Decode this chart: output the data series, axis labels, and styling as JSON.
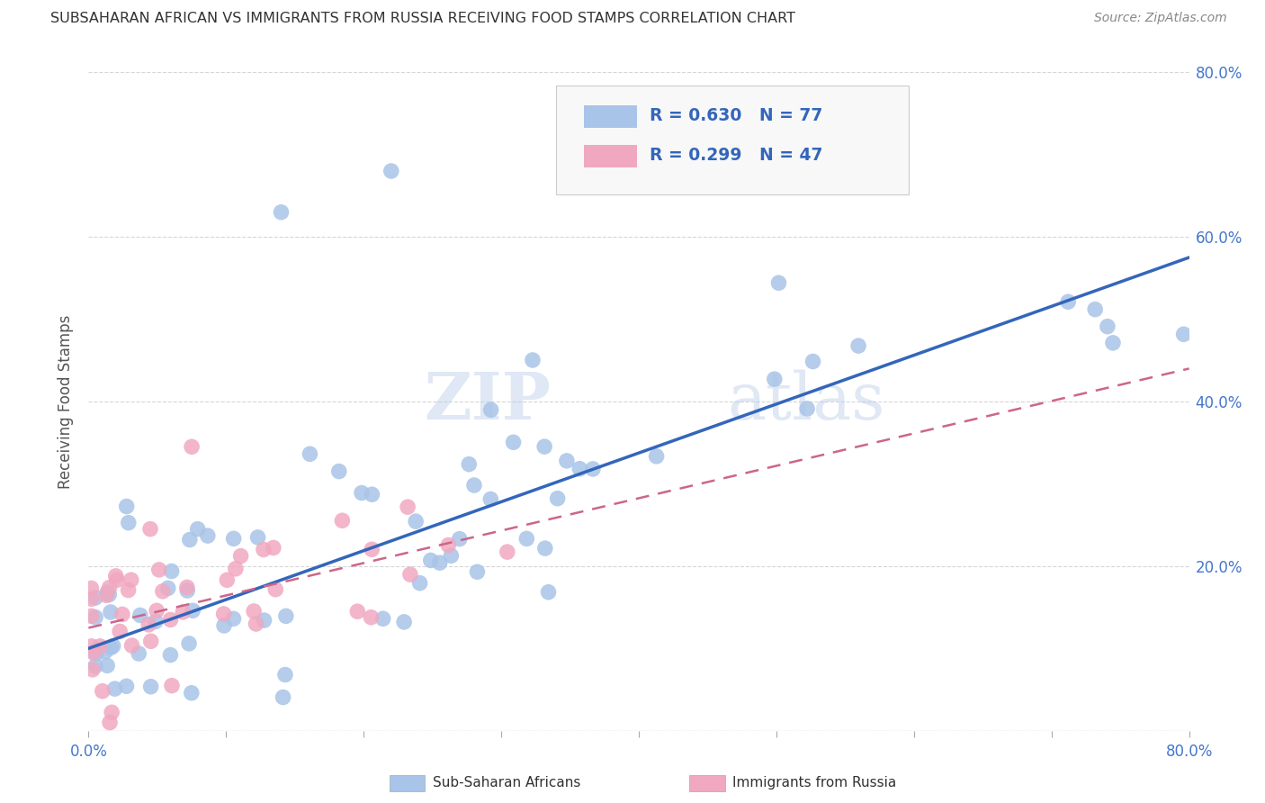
{
  "title": "SUBSAHARAN AFRICAN VS IMMIGRANTS FROM RUSSIA RECEIVING FOOD STAMPS CORRELATION CHART",
  "source": "Source: ZipAtlas.com",
  "ylabel": "Receiving Food Stamps",
  "xlim": [
    0.0,
    0.8
  ],
  "ylim": [
    0.0,
    0.8
  ],
  "xtick_vals": [
    0.0,
    0.1,
    0.2,
    0.3,
    0.4,
    0.5,
    0.6,
    0.7,
    0.8
  ],
  "ytick_vals": [
    0.0,
    0.2,
    0.4,
    0.6,
    0.8
  ],
  "blue_color": "#a8c4e8",
  "pink_color": "#f0a8c0",
  "blue_line_color": "#3366bb",
  "pink_line_color": "#cc6688",
  "watermark_zip": "ZIP",
  "watermark_atlas": "atlas",
  "blue_line_x": [
    0.0,
    0.8
  ],
  "blue_line_y": [
    0.1,
    0.575
  ],
  "pink_line_x": [
    0.0,
    0.8
  ],
  "pink_line_y": [
    0.125,
    0.44
  ]
}
